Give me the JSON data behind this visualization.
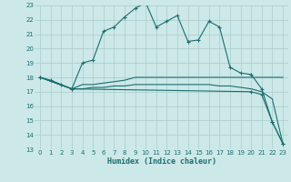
{
  "xlabel": "Humidex (Indice chaleur)",
  "bg_color": "#cce8e8",
  "grid_color": "#aacccc",
  "line_color": "#1a6e6e",
  "xlim": [
    -0.5,
    23.5
  ],
  "ylim": [
    13,
    23
  ],
  "xticks": [
    0,
    1,
    2,
    3,
    4,
    5,
    6,
    7,
    8,
    9,
    10,
    11,
    12,
    13,
    14,
    15,
    16,
    17,
    18,
    19,
    20,
    21,
    22,
    23
  ],
  "yticks": [
    13,
    14,
    15,
    16,
    17,
    18,
    19,
    20,
    21,
    22,
    23
  ],
  "series": [
    {
      "x": [
        0,
        1,
        2,
        3,
        4,
        5,
        6,
        7,
        8,
        9,
        10,
        11,
        12,
        13,
        14,
        15,
        16,
        17,
        18,
        19,
        20,
        21,
        22,
        23
      ],
      "y": [
        18,
        17.8,
        17.5,
        17.2,
        19.0,
        19.2,
        21.2,
        21.5,
        22.2,
        22.8,
        23.2,
        21.5,
        21.9,
        22.3,
        20.5,
        20.6,
        21.9,
        21.5,
        18.7,
        18.3,
        18.2,
        17.2,
        14.9,
        13.4
      ],
      "marker": true
    },
    {
      "x": [
        0,
        3,
        4,
        5,
        6,
        7,
        8,
        9,
        10,
        11,
        12,
        13,
        14,
        15,
        16,
        17,
        18,
        19,
        20,
        21,
        22,
        23
      ],
      "y": [
        18,
        17.2,
        17.5,
        17.5,
        17.6,
        17.7,
        17.8,
        18.0,
        18.0,
        18.0,
        18.0,
        18.0,
        18.0,
        18.0,
        18.0,
        18.0,
        18.0,
        18.0,
        18.0,
        18.0,
        18.0,
        18.0
      ],
      "marker": false
    },
    {
      "x": [
        0,
        3,
        4,
        5,
        6,
        7,
        8,
        9,
        10,
        11,
        12,
        13,
        14,
        15,
        16,
        17,
        18,
        19,
        20,
        21,
        22,
        23
      ],
      "y": [
        18,
        17.2,
        17.2,
        17.3,
        17.3,
        17.4,
        17.4,
        17.5,
        17.5,
        17.5,
        17.5,
        17.5,
        17.5,
        17.5,
        17.5,
        17.4,
        17.4,
        17.3,
        17.2,
        17.0,
        16.5,
        13.4
      ],
      "marker": false
    },
    {
      "x": [
        0,
        3,
        20,
        21,
        22,
        23
      ],
      "y": [
        18,
        17.2,
        17.0,
        16.8,
        14.9,
        13.4
      ],
      "marker": true
    }
  ]
}
